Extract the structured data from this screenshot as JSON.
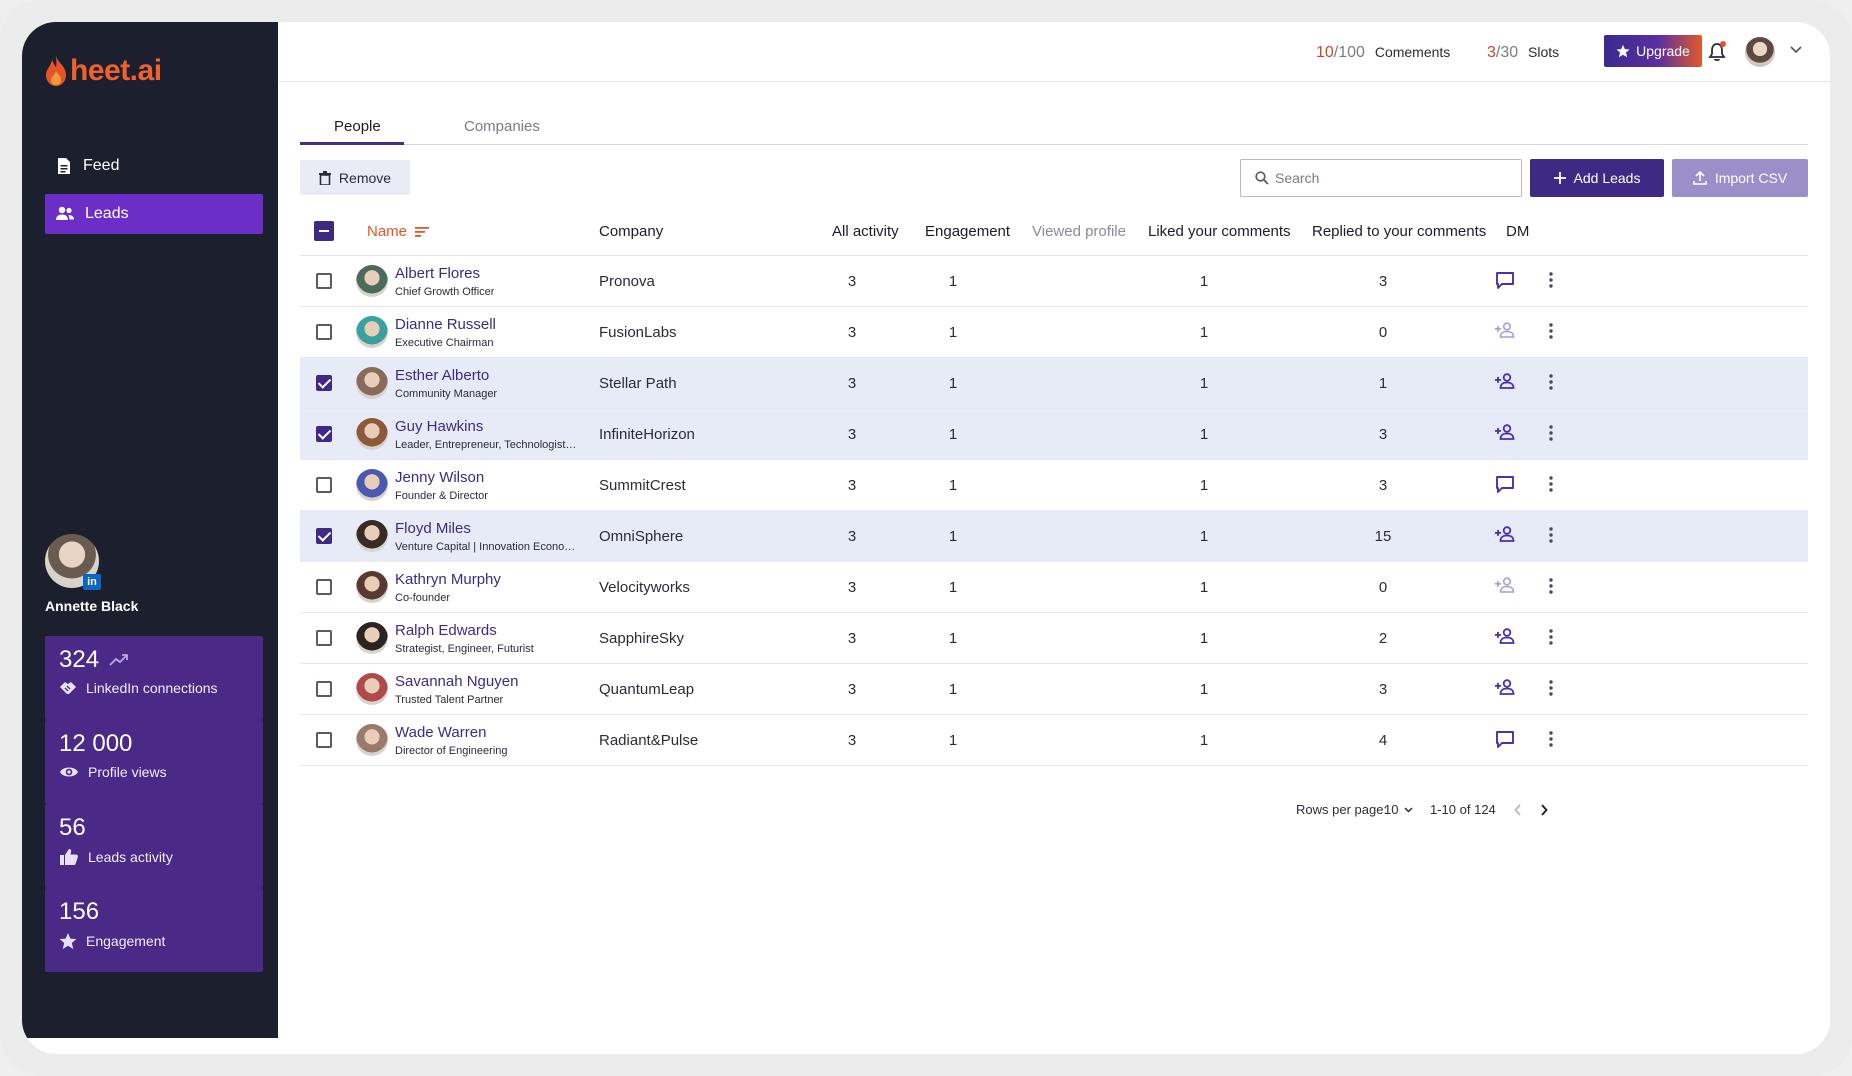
{
  "app": {
    "name": "heet.ai"
  },
  "sidebar": {
    "nav": [
      {
        "label": "Feed",
        "icon": "document-icon",
        "active": false
      },
      {
        "label": "Leads",
        "icon": "people-icon",
        "active": true
      }
    ],
    "profile": {
      "name": "Annette Black",
      "badge": "in"
    },
    "stats": [
      {
        "value": "324",
        "label": "LinkedIn connections",
        "icon": "handshake-icon",
        "trend": "trending-up-icon"
      },
      {
        "value": "12 000",
        "label": "Profile views",
        "icon": "eye-icon"
      },
      {
        "value": "56",
        "label": "Leads activity",
        "icon": "thumbs-up-icon"
      },
      {
        "value": "156",
        "label": "Engagement",
        "icon": "star-icon"
      }
    ]
  },
  "topbar": {
    "comments": {
      "used": "10",
      "total": "/100",
      "label": "Comements"
    },
    "slots": {
      "used": "3",
      "total": "/30",
      "label": "Slots"
    },
    "upgrade_label": "Upgrade"
  },
  "tabs": [
    {
      "label": "People",
      "active": true
    },
    {
      "label": "Companies",
      "active": false
    }
  ],
  "toolbar": {
    "remove_label": "Remove",
    "search_placeholder": "Search",
    "add_label": "Add Leads",
    "import_label": "Import CSV"
  },
  "table": {
    "headers": {
      "name": "Name",
      "company": "Company",
      "all_activity": "All activity",
      "engagement": "Engagement",
      "viewed_profile": "Viewed profile",
      "liked": "Liked your comments",
      "replied": "Replied to your comments",
      "dm": "DM"
    },
    "rows": [
      {
        "name": "Albert Flores",
        "title": "Chief Growth Officer",
        "company": "Pronova",
        "all_activity": "3",
        "engagement": "1",
        "liked": "1",
        "replied": "3",
        "dm": "message-icon",
        "selected": false,
        "avatar_color": "#4a6a5a"
      },
      {
        "name": "Dianne Russell",
        "title": "Executive Chairman",
        "company": "FusionLabs",
        "all_activity": "3",
        "engagement": "1",
        "liked": "1",
        "replied": "0",
        "dm": "add-person-light-icon",
        "selected": false,
        "avatar_color": "#3aa0a0"
      },
      {
        "name": "Esther Alberto",
        "title": "Community Manager",
        "company": "Stellar Path",
        "all_activity": "3",
        "engagement": "1",
        "liked": "1",
        "replied": "1",
        "dm": "add-person-icon",
        "selected": true,
        "avatar_color": "#8a6a5a"
      },
      {
        "name": "Guy Hawkins",
        "title": "Leader, Entrepreneur, Technologist, Innovator",
        "company": "InfiniteHorizon",
        "all_activity": "3",
        "engagement": "1",
        "liked": "1",
        "replied": "3",
        "dm": "add-person-icon",
        "selected": true,
        "avatar_color": "#8a5a3a"
      },
      {
        "name": "Jenny Wilson",
        "title": "Founder & Director",
        "company": "SummitCrest",
        "all_activity": "3",
        "engagement": "1",
        "liked": "1",
        "replied": "3",
        "dm": "message-icon",
        "selected": false,
        "avatar_color": "#4a5ab0"
      },
      {
        "name": "Floyd Miles",
        "title": "Venture Capital | Innovation Economy",
        "company": "OmniSphere",
        "all_activity": "3",
        "engagement": "1",
        "liked": "1",
        "replied": "15",
        "dm": "add-person-icon",
        "selected": true,
        "avatar_color": "#3a2a24"
      },
      {
        "name": "Kathryn Murphy",
        "title": "Co-founder",
        "company": "Velocityworks",
        "all_activity": "3",
        "engagement": "1",
        "liked": "1",
        "replied": "0",
        "dm": "add-person-light-icon",
        "selected": false,
        "avatar_color": "#5a3a30"
      },
      {
        "name": "Ralph Edwards",
        "title": "Strategist, Engineer, Futurist",
        "company": "SapphireSky",
        "all_activity": "3",
        "engagement": "1",
        "liked": "1",
        "replied": "2",
        "dm": "add-person-icon",
        "selected": false,
        "avatar_color": "#2a2422"
      },
      {
        "name": "Savannah Nguyen",
        "title": "Trusted Talent Partner",
        "company": "QuantumLeap",
        "all_activity": "3",
        "engagement": "1",
        "liked": "1",
        "replied": "3",
        "dm": "add-person-icon",
        "selected": false,
        "avatar_color": "#b04a4a"
      },
      {
        "name": "Wade Warren",
        "title": "Director of Engineering",
        "company": "Radiant&Pulse",
        "all_activity": "3",
        "engagement": "1",
        "liked": "1",
        "replied": "4",
        "dm": "message-icon",
        "selected": false,
        "avatar_color": "#9a7a6a"
      }
    ]
  },
  "pagination": {
    "rows_label": "Rows per page:",
    "rows_value": "10",
    "range": "1-10 of 124"
  },
  "colors": {
    "sidebar_bg": "#1c1f2e",
    "accent": "#3e2a85",
    "active_nav": "#6b2fc7",
    "brand_orange": "#f0622c",
    "selected_row": "#e7ebf8"
  }
}
